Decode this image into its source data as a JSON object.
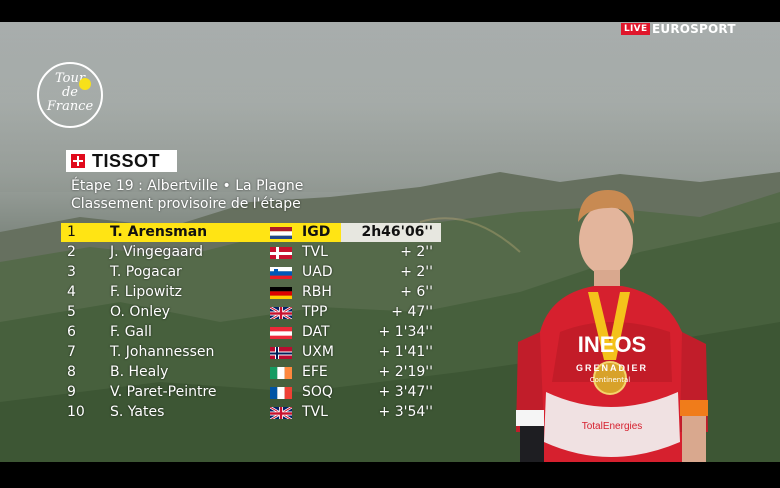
{
  "broadcast": {
    "live_label": "LIVE",
    "channel": "EUROSPORT",
    "event_logo_icon": "tour-de-france-logo",
    "event_logo_text": "Tour de France",
    "sponsor": "TISSOT",
    "sponsor_icon": "tissot-swiss-cross-icon"
  },
  "standings": {
    "stage": "Étape 19 : Albertville • La Plagne",
    "subtitle": "Classement provisoire de l'étape",
    "rows": [
      {
        "pos": "1",
        "name": "T. Arensman",
        "flag": "netherlands-flag",
        "team": "IGD",
        "gap": "2h46'06''"
      },
      {
        "pos": "2",
        "name": "J. Vingegaard",
        "flag": "denmark-flag",
        "team": "TVL",
        "gap": "+ 2''"
      },
      {
        "pos": "3",
        "name": "T. Pogacar",
        "flag": "slovenia-flag",
        "team": "UAD",
        "gap": "+ 2''"
      },
      {
        "pos": "4",
        "name": "F. Lipowitz",
        "flag": "germany-flag",
        "team": "RBH",
        "gap": "+ 6''"
      },
      {
        "pos": "5",
        "name": "O. Onley",
        "flag": "united-kingdom-flag",
        "team": "TPP",
        "gap": "+ 47''"
      },
      {
        "pos": "6",
        "name": "F. Gall",
        "flag": "austria-flag",
        "team": "DAT",
        "gap": "+ 1'34''"
      },
      {
        "pos": "7",
        "name": "T. Johannessen",
        "flag": "norway-flag",
        "team": "UXM",
        "gap": "+ 1'41''"
      },
      {
        "pos": "8",
        "name": "B. Healy",
        "flag": "ireland-flag",
        "team": "EFE",
        "gap": "+ 2'19''"
      },
      {
        "pos": "9",
        "name": "V. Paret-Peintre",
        "flag": "france-flag",
        "team": "SOQ",
        "gap": "+ 3'47''"
      },
      {
        "pos": "10",
        "name": "S. Yates",
        "flag": "united-kingdom-flag",
        "team": "TVL",
        "gap": "+ 3'54''"
      }
    ]
  },
  "rider_image": {
    "jersey_text_1": "INEOS",
    "jersey_text_2": "GRENADIER",
    "jersey_text_3": "TotalEnergies",
    "medal_text": "Continental"
  },
  "colors": {
    "leader_highlight": "#ffe414",
    "live_badge": "#e0162b",
    "tdf_yellow": "#f7e11b"
  }
}
